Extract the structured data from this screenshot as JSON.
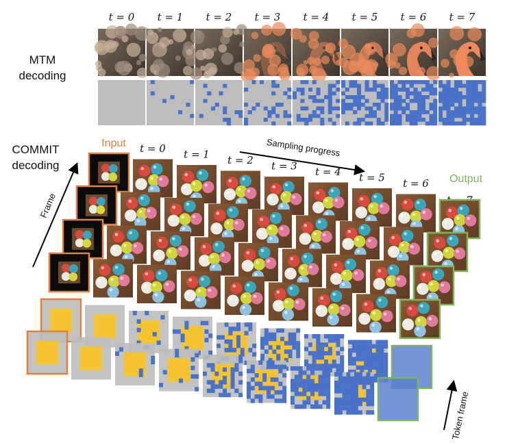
{
  "mtm": {
    "label_line1": "MTM",
    "label_line2": "decoding",
    "timesteps": [
      "t = 0",
      "t = 1",
      "t = 2",
      "t = 3",
      "t = 4",
      "t = 5",
      "t = 6",
      "t = 7"
    ],
    "mask_densities": [
      0.0,
      0.05,
      0.12,
      0.25,
      0.38,
      0.52,
      0.68,
      0.85
    ]
  },
  "commit": {
    "label_line1": "COMMIT",
    "label_line2": "decoding",
    "input_label": "Input",
    "output_label": "Output",
    "frame_axis_label": "Frame",
    "token_axis_label": "Token frame",
    "progress_label": "Sampling progress",
    "timesteps": [
      "t = 0",
      "t = 1",
      "t = 2",
      "t = 3",
      "t = 4",
      "t = 5",
      "t = 6",
      "t = 7"
    ],
    "token_densities": [
      0.0,
      0.05,
      0.15,
      0.3,
      0.48,
      0.65,
      0.82,
      1.0
    ]
  },
  "colors": {
    "input_border": "#e2803f",
    "output_border": "#7fb35a",
    "mask_gray": "#bdbdbd",
    "mask_blue": "#4a72c9",
    "token_yellow": "#f4c430"
  }
}
